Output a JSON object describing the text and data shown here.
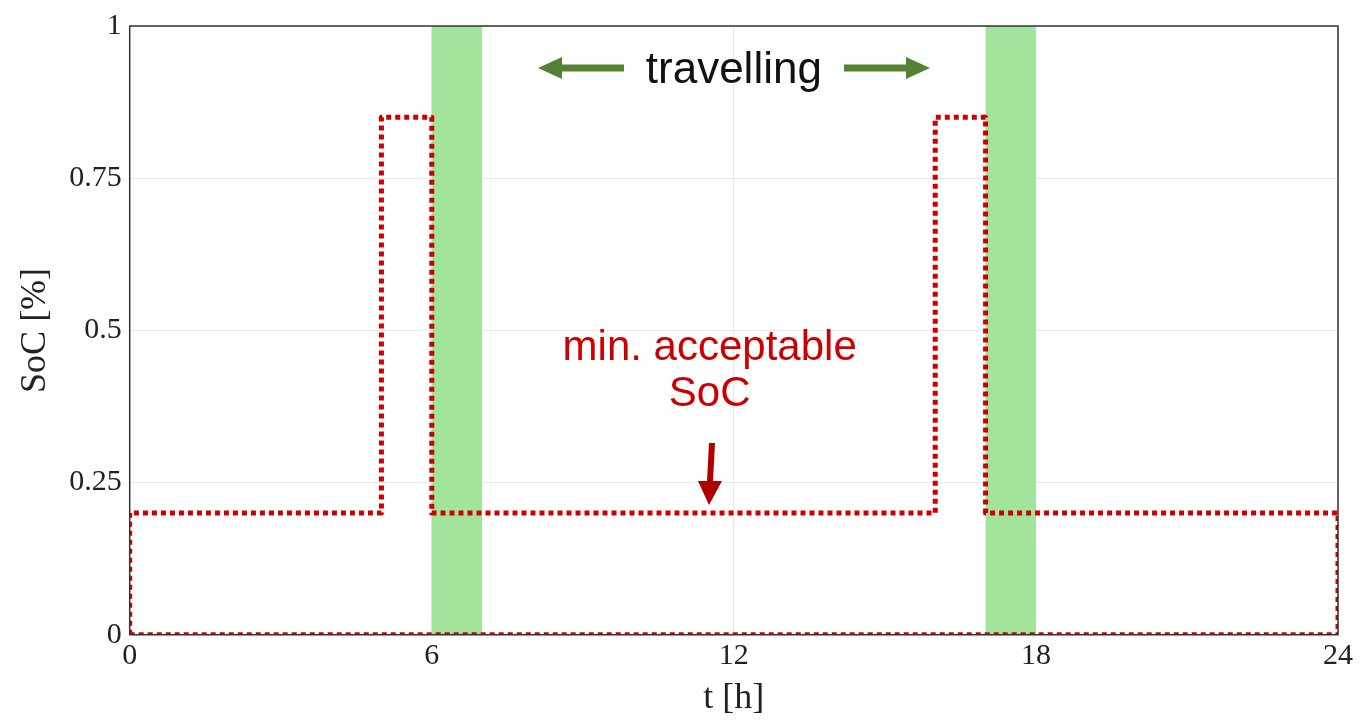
{
  "chart_data": {
    "type": "line",
    "xlabel": "t [h]",
    "ylabel": "SoC [%]",
    "xlim": [
      0,
      24
    ],
    "xticks": [
      0,
      6,
      12,
      18,
      24
    ],
    "ylim": [
      0,
      1
    ],
    "yticks": [
      0,
      0.25,
      0.5,
      0.75,
      1
    ],
    "grid": true,
    "series": [
      {
        "color": "#cc0000",
        "line_style": "dotted",
        "marker": "none",
        "x": [
          0,
          0,
          5,
          5,
          6,
          6,
          16,
          16,
          17,
          17,
          24,
          24
        ],
        "values": [
          0,
          0.2,
          0.2,
          0.85,
          0.85,
          0.2,
          0.2,
          0.85,
          0.85,
          0.2,
          0.2,
          0
        ]
      },
      {
        "color": "#cc0000",
        "line_style": "dotted",
        "marker": "none",
        "x": [
          0,
          24
        ],
        "values": [
          0,
          0
        ]
      }
    ],
    "bands": [
      {
        "axis": "x",
        "from": 6,
        "to": 7,
        "color": "#a3e49c"
      },
      {
        "axis": "x",
        "from": 17,
        "to": 18,
        "color": "#a3e49c"
      }
    ],
    "annotations": [
      "travelling",
      "min. acceptable SoC"
    ]
  }
}
